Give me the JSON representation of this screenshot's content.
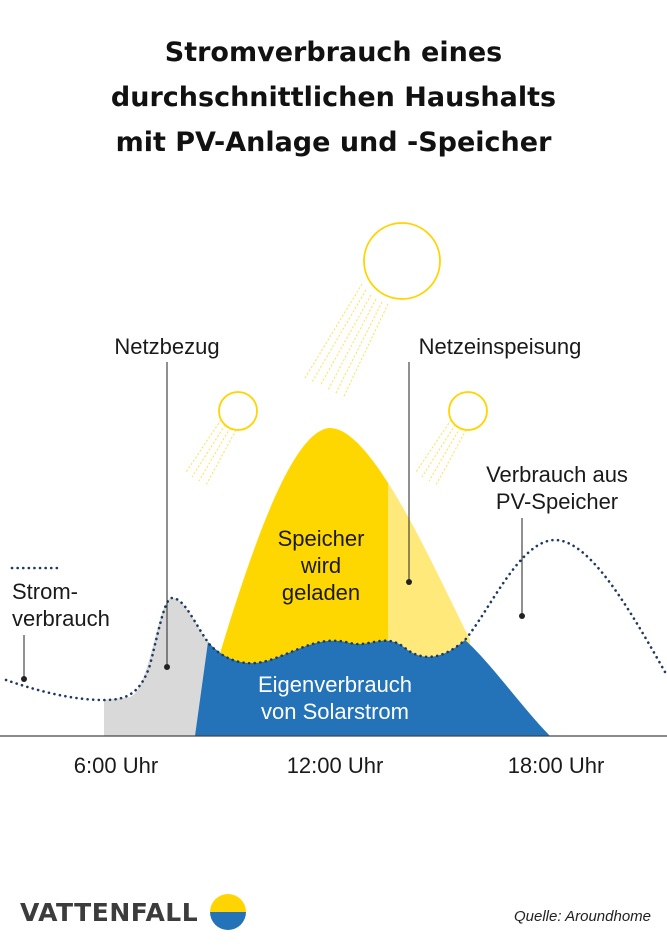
{
  "title_lines": [
    "Stromverbrauch eines",
    "durchschnittlichen Haushalts",
    "mit PV-Anlage und -Speicher"
  ],
  "labels": {
    "netzbezug": "Netzbezug",
    "netzeinspeisung": "Netzeinspeisung",
    "verbrauch_speicher_1": "Verbrauch aus",
    "verbrauch_speicher_2": "PV-Speicher",
    "stromverbrauch_1": "Strom-",
    "stromverbrauch_2": "verbrauch",
    "speicher_1": "Speicher",
    "speicher_2": "wird",
    "speicher_3": "geladen",
    "eigen_1": "Eigenverbrauch",
    "eigen_2": "von Solarstrom"
  },
  "x_ticks": [
    "6:00 Uhr",
    "12:00 Uhr",
    "18:00 Uhr"
  ],
  "brand": "VATTENFALL",
  "source": "Quelle: Aroundhome",
  "icons": [
    "sun-icon",
    "vattenfall-logo-icon"
  ],
  "colors": {
    "solar_yellow": "#FFD700",
    "feed_in_yellow": "#FFE97A",
    "self_use_blue": "#2472B8",
    "grid_gray": "#D9D9D9",
    "consumption_dots": "#1F3A5F",
    "axis": "#444444"
  }
}
